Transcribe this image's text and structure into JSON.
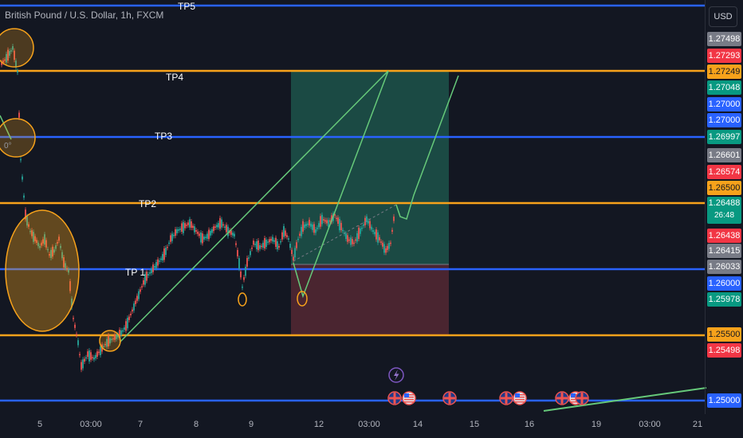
{
  "header": {
    "symbol_title": "British Pound / U.S. Dollar, 1h, FXCM",
    "currency_button": "USD"
  },
  "colors": {
    "background": "#131722",
    "up_candle": "#26a69a",
    "down_candle": "#ef5350",
    "orange_line": "#f7a21b",
    "blue_line": "#2962ff",
    "green_projection": "#66c97a",
    "profit_zone": "#1b4a44",
    "loss_zone": "#4a2530"
  },
  "annotations": {
    "tp5": "TP5",
    "tp4": "TP4",
    "tp3": "TP3",
    "tp2": "TP2",
    "tp1": "TP 1",
    "angle_label": "0°"
  },
  "price_axis": [
    {
      "value": "1.27498",
      "color": "#787b86"
    },
    {
      "value": "1.27293",
      "color": "#f23645"
    },
    {
      "value": "1.27249",
      "color": "#f7a21b"
    },
    {
      "value": "1.27048",
      "color": "#089981"
    },
    {
      "value": "1.27000",
      "color": "#2962ff"
    },
    {
      "value": "1.27000",
      "color": "#2962ff"
    },
    {
      "value": "1.26997",
      "color": "#089981"
    },
    {
      "value": "1.26601",
      "color": "#787b86"
    },
    {
      "value": "1.26574",
      "color": "#f23645"
    },
    {
      "value": "1.26500",
      "color": "#f7a21b"
    },
    {
      "value": "1.26488",
      "sub": "26:48",
      "color": "#089981"
    },
    {
      "value": "1.26438",
      "color": "#f23645"
    },
    {
      "value": "1.26415",
      "color": "#787b86"
    },
    {
      "value": "1.26033",
      "color": "#787b86"
    },
    {
      "value": "1.26000",
      "color": "#2962ff"
    },
    {
      "value": "1.25978",
      "color": "#089981"
    },
    {
      "value": "1.25500",
      "color": "#f7a21b"
    },
    {
      "value": "1.25498",
      "color": "#f23645"
    },
    {
      "value": "1.25000",
      "color": "#2962ff"
    }
  ],
  "time_axis": [
    "5",
    "03:00",
    "7",
    "8",
    "9",
    "12",
    "03:00",
    "14",
    "15",
    "16",
    "19",
    "03:00",
    "21"
  ]
}
